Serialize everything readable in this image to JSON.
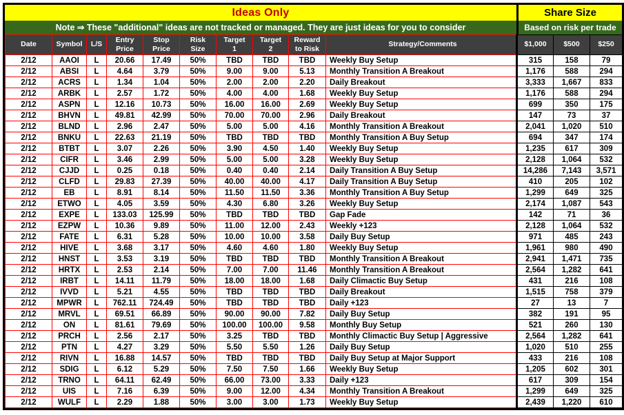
{
  "header": {
    "title": "Ideas Only",
    "share_size_title": "Share Size",
    "note": "Note ⇒ These \"additional\" ideas are not tracked or managed. They are just ideas for you to consider",
    "share_size_note": "Based on risk per trade"
  },
  "colors": {
    "banner_yellow": "#FFFF00",
    "note_green": "#37691D",
    "header_gray": "#3F3F3F",
    "grid_red": "#FF0000",
    "grid_black": "#000000",
    "title_red": "#C00000"
  },
  "table": {
    "columns": [
      "Date",
      "Symbol",
      "L/S",
      "Entry\nPrice",
      "Stop\nPrice",
      "Risk\nSize",
      "Target\n1",
      "Target\n2",
      "Reward\nto Risk",
      "Strategy/Comments",
      "$1,000",
      "$500",
      "$250"
    ],
    "rows": [
      [
        "2/12",
        "AAOI",
        "L",
        "20.66",
        "17.49",
        "50%",
        "TBD",
        "TBD",
        "TBD",
        "Weekly Buy Setup",
        "315",
        "158",
        "79"
      ],
      [
        "2/12",
        "ABSI",
        "L",
        "4.64",
        "3.79",
        "50%",
        "9.00",
        "9.00",
        "5.13",
        "Monthly Transition A Breakout",
        "1,176",
        "588",
        "294"
      ],
      [
        "2/12",
        "ACRS",
        "L",
        "1.34",
        "1.04",
        "50%",
        "2.00",
        "2.00",
        "2.20",
        "Daily Breakout",
        "3,333",
        "1,667",
        "833"
      ],
      [
        "2/12",
        "ARBK",
        "L",
        "2.57",
        "1.72",
        "50%",
        "4.00",
        "4.00",
        "1.68",
        "Weekly Buy Setup",
        "1,176",
        "588",
        "294"
      ],
      [
        "2/12",
        "ASPN",
        "L",
        "12.16",
        "10.73",
        "50%",
        "16.00",
        "16.00",
        "2.69",
        "Weekly Buy Setup",
        "699",
        "350",
        "175"
      ],
      [
        "2/12",
        "BHVN",
        "L",
        "49.81",
        "42.99",
        "50%",
        "70.00",
        "70.00",
        "2.96",
        "Daily Breakout",
        "147",
        "73",
        "37"
      ],
      [
        "2/12",
        "BLND",
        "L",
        "2.96",
        "2.47",
        "50%",
        "5.00",
        "5.00",
        "4.16",
        "Monthly Transition A Breakout",
        "2,041",
        "1,020",
        "510"
      ],
      [
        "2/12",
        "BNKU",
        "L",
        "22.63",
        "21.19",
        "50%",
        "TBD",
        "TBD",
        "TBD",
        "Monthly Transition A Buy Setup",
        "694",
        "347",
        "174"
      ],
      [
        "2/12",
        "BTBT",
        "L",
        "3.07",
        "2.26",
        "50%",
        "3.90",
        "4.50",
        "1.40",
        "Weekly Buy Setup",
        "1,235",
        "617",
        "309"
      ],
      [
        "2/12",
        "CIFR",
        "L",
        "3.46",
        "2.99",
        "50%",
        "5.00",
        "5.00",
        "3.28",
        "Weekly Buy Setup",
        "2,128",
        "1,064",
        "532"
      ],
      [
        "2/12",
        "CJJD",
        "L",
        "0.25",
        "0.18",
        "50%",
        "0.40",
        "0.40",
        "2.14",
        "Daily Transition A Buy Setup",
        "14,286",
        "7,143",
        "3,571"
      ],
      [
        "2/12",
        "CLFD",
        "L",
        "29.83",
        "27.39",
        "50%",
        "40.00",
        "40.00",
        "4.17",
        "Daily Transition A Buy Setup",
        "410",
        "205",
        "102"
      ],
      [
        "2/12",
        "EB",
        "L",
        "8.91",
        "8.14",
        "50%",
        "11.50",
        "11.50",
        "3.36",
        "Monthly Transition A Buy Setup",
        "1,299",
        "649",
        "325"
      ],
      [
        "2/12",
        "ETWO",
        "L",
        "4.05",
        "3.59",
        "50%",
        "4.30",
        "6.80",
        "3.26",
        "Weekly Buy Setup",
        "2,174",
        "1,087",
        "543"
      ],
      [
        "2/12",
        "EXPE",
        "L",
        "133.03",
        "125.99",
        "50%",
        "TBD",
        "TBD",
        "TBD",
        "Gap Fade",
        "142",
        "71",
        "36"
      ],
      [
        "2/12",
        "EZPW",
        "L",
        "10.36",
        "9.89",
        "50%",
        "11.00",
        "12.00",
        "2.43",
        "Weekly +123",
        "2,128",
        "1,064",
        "532"
      ],
      [
        "2/12",
        "FATE",
        "L",
        "6.31",
        "5.28",
        "50%",
        "10.00",
        "10.00",
        "3.58",
        "Daily Buy Setup",
        "971",
        "485",
        "243"
      ],
      [
        "2/12",
        "HIVE",
        "L",
        "3.68",
        "3.17",
        "50%",
        "4.60",
        "4.60",
        "1.80",
        "Weekly Buy Setup",
        "1,961",
        "980",
        "490"
      ],
      [
        "2/12",
        "HNST",
        "L",
        "3.53",
        "3.19",
        "50%",
        "TBD",
        "TBD",
        "TBD",
        "Monthly Transition A Breakout",
        "2,941",
        "1,471",
        "735"
      ],
      [
        "2/12",
        "HRTX",
        "L",
        "2.53",
        "2.14",
        "50%",
        "7.00",
        "7.00",
        "11.46",
        "Monthly Transition A Breakout",
        "2,564",
        "1,282",
        "641"
      ],
      [
        "2/12",
        "IRBT",
        "L",
        "14.11",
        "11.79",
        "50%",
        "18.00",
        "18.00",
        "1.68",
        "Daily Climactic Buy Setup",
        "431",
        "216",
        "108"
      ],
      [
        "2/12",
        "IVVD",
        "L",
        "5.21",
        "4.55",
        "50%",
        "TBD",
        "TBD",
        "TBD",
        "Daily Breakout",
        "1,515",
        "758",
        "379"
      ],
      [
        "2/12",
        "MPWR",
        "L",
        "762.11",
        "724.49",
        "50%",
        "TBD",
        "TBD",
        "TBD",
        "Daily +123",
        "27",
        "13",
        "7"
      ],
      [
        "2/12",
        "MRVL",
        "L",
        "69.51",
        "66.89",
        "50%",
        "90.00",
        "90.00",
        "7.82",
        "Daily Buy Setup",
        "382",
        "191",
        "95"
      ],
      [
        "2/12",
        "ON",
        "L",
        "81.61",
        "79.69",
        "50%",
        "100.00",
        "100.00",
        "9.58",
        "Monthly Buy Setup",
        "521",
        "260",
        "130"
      ],
      [
        "2/12",
        "PRCH",
        "L",
        "2.56",
        "2.17",
        "50%",
        "3.25",
        "TBD",
        "TBD",
        "Monthly Climactic Buy Setup | Aggressive",
        "2,564",
        "1,282",
        "641"
      ],
      [
        "2/12",
        "PTN",
        "L",
        "4.27",
        "3.29",
        "50%",
        "5.50",
        "5.50",
        "1.26",
        "Daily Buy Setup",
        "1,020",
        "510",
        "255"
      ],
      [
        "2/12",
        "RIVN",
        "L",
        "16.88",
        "14.57",
        "50%",
        "TBD",
        "TBD",
        "TBD",
        "Daily Buy Setup at Major Support",
        "433",
        "216",
        "108"
      ],
      [
        "2/12",
        "SDIG",
        "L",
        "6.12",
        "5.29",
        "50%",
        "7.50",
        "7.50",
        "1.66",
        "Weekly Buy Setup",
        "1,205",
        "602",
        "301"
      ],
      [
        "2/12",
        "TRNO",
        "L",
        "64.11",
        "62.49",
        "50%",
        "66.00",
        "73.00",
        "3.33",
        "Daily +123",
        "617",
        "309",
        "154"
      ],
      [
        "2/12",
        "UIS",
        "L",
        "7.16",
        "6.39",
        "50%",
        "9.00",
        "12.00",
        "4.34",
        "Monthly Transition A Breakout",
        "1,299",
        "649",
        "325"
      ],
      [
        "2/12",
        "WULF",
        "L",
        "2.29",
        "1.88",
        "50%",
        "3.00",
        "3.00",
        "1.73",
        "Weekly Buy Setup",
        "2,439",
        "1,220",
        "610"
      ]
    ]
  }
}
